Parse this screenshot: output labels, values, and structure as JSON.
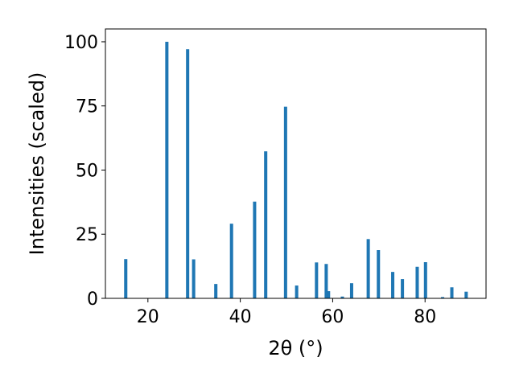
{
  "chart_data": {
    "type": "bar",
    "title": "",
    "xlabel": "2θ (°)",
    "ylabel": "Intensities (scaled)",
    "xlim": [
      10.8,
      93.2
    ],
    "ylim": [
      0,
      105
    ],
    "xticks": [
      20,
      40,
      60,
      80
    ],
    "yticks": [
      0,
      25,
      50,
      75,
      100
    ],
    "grid": false,
    "bar_color": "#1f77b4",
    "bar_width": 0.7,
    "x": [
      15.2,
      24.1,
      28.6,
      29.9,
      34.7,
      38.1,
      43.1,
      45.5,
      49.8,
      52.2,
      56.5,
      58.6,
      59.1,
      62.1,
      64.1,
      67.7,
      69.9,
      73.0,
      75.1,
      78.3,
      80.1,
      83.8,
      85.8,
      88.9
    ],
    "values": [
      15.3,
      100,
      97.1,
      15.2,
      5.6,
      29.1,
      37.7,
      57.3,
      74.7,
      5.0,
      14.0,
      13.4,
      2.8,
      0.7,
      5.9,
      23.1,
      18.8,
      10.3,
      7.5,
      12.3,
      14.1,
      0.5,
      4.3,
      2.6
    ]
  }
}
